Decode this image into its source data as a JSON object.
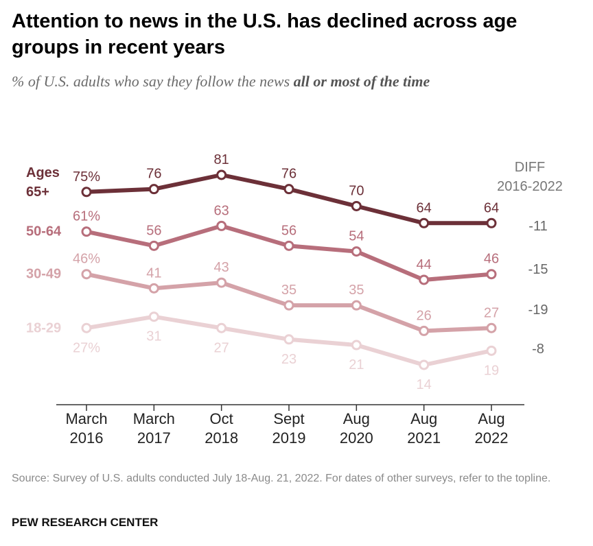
{
  "title": "Attention to news in the U.S. has declined across age groups in recent years",
  "subtitle_plain": "% of U.S. adults who say they follow the news ",
  "subtitle_bold": "all or most of the time",
  "source": "Source: Survey of U.S. adults conducted July 18-Aug. 21, 2022. For dates of other surveys, refer to the topline.",
  "organization": "PEW RESEARCH CENTER",
  "chart_data": {
    "type": "line",
    "x_labels": [
      [
        "March",
        "2016"
      ],
      [
        "March",
        "2017"
      ],
      [
        "Oct",
        "2018"
      ],
      [
        "Sept",
        "2019"
      ],
      [
        "Aug",
        "2020"
      ],
      [
        "Aug",
        "2021"
      ],
      [
        "Aug",
        "2022"
      ]
    ],
    "ylim": [
      10,
      85
    ],
    "grid": false,
    "diff_header": [
      "DIFF",
      "2016-2022"
    ],
    "series": [
      {
        "name": "Ages 65+",
        "name_lines": [
          "Ages",
          "65+"
        ],
        "values": [
          75,
          76,
          81,
          76,
          70,
          64,
          64
        ],
        "value_labels": [
          "75%",
          "76",
          "81",
          "76",
          "70",
          "64",
          "64"
        ],
        "label_positions": [
          "above",
          "above",
          "above",
          "above",
          "above",
          "above",
          "above"
        ],
        "diff": "-11",
        "color": "#6c3038"
      },
      {
        "name": "50-64",
        "name_lines": [
          "50-64"
        ],
        "values": [
          61,
          56,
          63,
          56,
          54,
          44,
          46
        ],
        "value_labels": [
          "61%",
          "56",
          "63",
          "56",
          "54",
          "44",
          "46"
        ],
        "label_positions": [
          "above",
          "above",
          "above",
          "above",
          "above",
          "above",
          "above"
        ],
        "diff": "-15",
        "color": "#b76e7b"
      },
      {
        "name": "30-49",
        "name_lines": [
          "30-49"
        ],
        "values": [
          46,
          41,
          43,
          35,
          35,
          26,
          27
        ],
        "value_labels": [
          "46%",
          "41",
          "43",
          "35",
          "35",
          "26",
          "27"
        ],
        "label_positions": [
          "above",
          "above",
          "above",
          "above",
          "above",
          "above",
          "above"
        ],
        "diff": "-19",
        "color": "#d4a2a8"
      },
      {
        "name": "18-29",
        "name_lines": [
          "18-29"
        ],
        "values": [
          27,
          31,
          27,
          23,
          21,
          14,
          19
        ],
        "value_labels": [
          "27%",
          "31",
          "27",
          "23",
          "21",
          "14",
          "19"
        ],
        "label_positions": [
          "below",
          "below",
          "below",
          "below",
          "below",
          "below",
          "below"
        ],
        "diff": "-8",
        "color": "#ead1d4"
      }
    ]
  }
}
